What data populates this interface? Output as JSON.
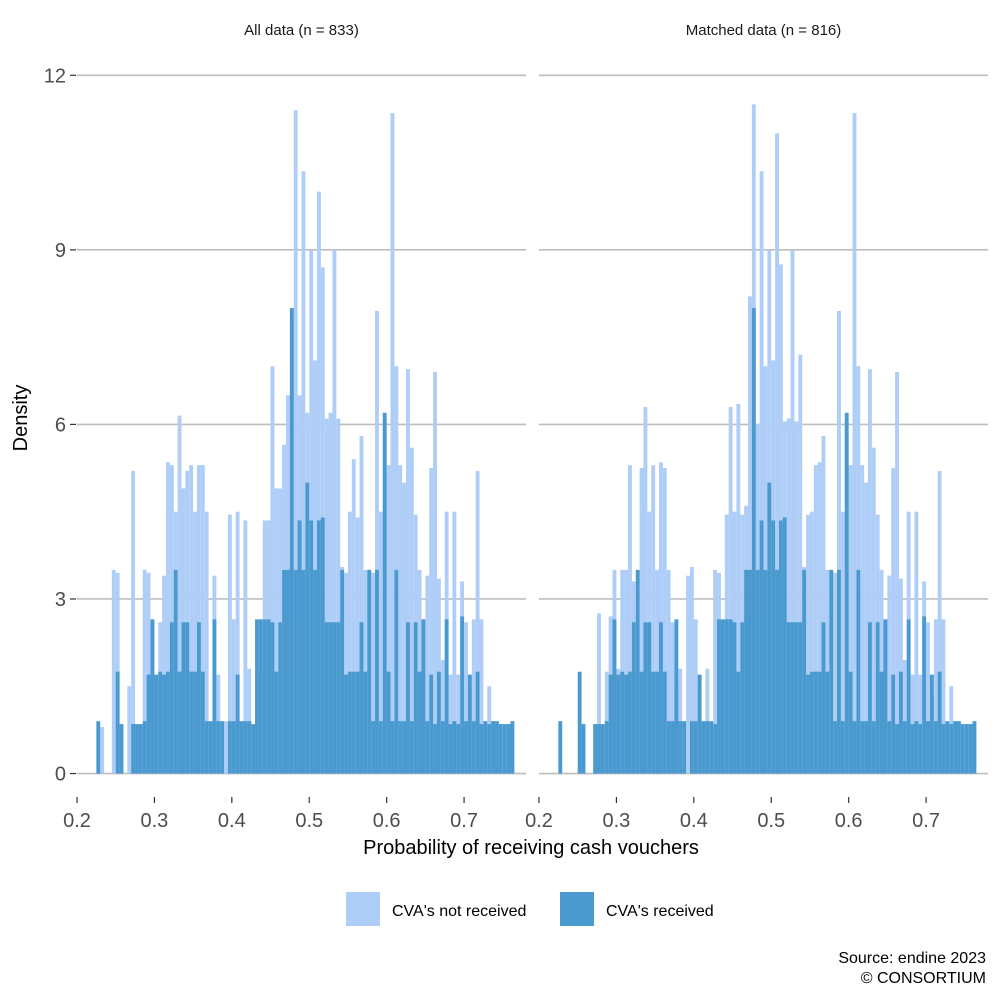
{
  "chart_data": {
    "type": "bar",
    "subtype": "overlaid-histogram",
    "xlabel": "Probability of receiving cash vouchers",
    "ylabel": "Density",
    "xlim": [
      0.2,
      0.78
    ],
    "ylim": [
      -0.3,
      12.4
    ],
    "x_ticks": [
      0.2,
      0.3,
      0.4,
      0.5,
      0.6,
      0.7
    ],
    "y_ticks": [
      0,
      3,
      6,
      9,
      12
    ],
    "bin_width": 0.005,
    "grid": "horizontal-major",
    "legend": {
      "placement": "bottom",
      "entries": [
        {
          "label": "CVA's not received",
          "color": "#aecdf7"
        },
        {
          "label": "CVA's received",
          "color": "#4a9ad0"
        }
      ]
    },
    "caption": [
      "Source: endine 2023",
      "© CONSORTIUM"
    ],
    "facets": [
      {
        "title": "All data (n = 833)",
        "series": [
          {
            "name": "CVA's not received",
            "color": "#aecdf7",
            "x": [
              0.2325,
              0.2475,
              0.2525,
              0.2675,
              0.2725,
              0.2875,
              0.2925,
              0.2975,
              0.3075,
              0.3125,
              0.3175,
              0.3225,
              0.3275,
              0.3325,
              0.3375,
              0.3425,
              0.3475,
              0.3525,
              0.3575,
              0.3625,
              0.3675,
              0.3775,
              0.3825,
              0.3925,
              0.3975,
              0.4025,
              0.4075,
              0.4175,
              0.4225,
              0.4325,
              0.4375,
              0.4425,
              0.4475,
              0.4525,
              0.4575,
              0.4625,
              0.4675,
              0.4725,
              0.4775,
              0.4825,
              0.4875,
              0.4925,
              0.4975,
              0.5025,
              0.5075,
              0.5125,
              0.5175,
              0.5225,
              0.5275,
              0.5325,
              0.5375,
              0.5425,
              0.5475,
              0.5525,
              0.5575,
              0.5625,
              0.5675,
              0.5725,
              0.5775,
              0.5825,
              0.5875,
              0.5925,
              0.5975,
              0.6025,
              0.6075,
              0.6125,
              0.6175,
              0.6225,
              0.6275,
              0.6325,
              0.6375,
              0.6425,
              0.6475,
              0.6525,
              0.6575,
              0.6625,
              0.6675,
              0.6725,
              0.6775,
              0.6825,
              0.6875,
              0.6925,
              0.6975,
              0.7025,
              0.7075,
              0.7125,
              0.7175,
              0.7225,
              0.7275,
              0.7325,
              0.7375,
              0.7425
            ],
            "values": [
              0.8,
              3.5,
              3.45,
              1.5,
              5.2,
              3.5,
              3.45,
              2.6,
              2.6,
              3.4,
              5.35,
              5.3,
              4.5,
              6.15,
              4.9,
              5.2,
              5.3,
              4.5,
              5.3,
              5.3,
              4.5,
              3.4,
              1.7,
              0.9,
              4.45,
              2.65,
              4.5,
              4.35,
              1.8,
              1.7,
              1.5,
              4.35,
              4.35,
              7.0,
              4.9,
              4.9,
              5.65,
              6.5,
              7.8,
              11.4,
              6.5,
              10.35,
              6.2,
              9.0,
              7.1,
              10.0,
              8.7,
              6.1,
              6.2,
              9.0,
              6.1,
              3.55,
              3.45,
              4.5,
              5.4,
              4.4,
              5.8,
              3.5,
              3.5,
              3.45,
              7.95,
              4.5,
              6.05,
              5.3,
              11.35,
              7.0,
              5.3,
              5.0,
              6.95,
              5.6,
              4.45,
              3.5,
              2.6,
              3.4,
              5.25,
              6.9,
              3.35,
              1.95,
              4.5,
              1.7,
              4.5,
              1.7,
              3.3,
              2.6,
              1.4,
              2.65,
              5.2,
              2.65,
              0.8,
              1.5,
              0.9,
              0.8
            ]
          },
          {
            "name": "CVA's received",
            "color": "#4a9ad0",
            "x": [
              0.2275,
              0.2525,
              0.2575,
              0.2725,
              0.2775,
              0.2825,
              0.2875,
              0.2925,
              0.2975,
              0.3025,
              0.3075,
              0.3125,
              0.3175,
              0.3225,
              0.3275,
              0.3325,
              0.3375,
              0.3425,
              0.3475,
              0.3525,
              0.3575,
              0.3625,
              0.3675,
              0.3725,
              0.3775,
              0.3825,
              0.3875,
              0.3925,
              0.3975,
              0.4025,
              0.4075,
              0.4125,
              0.4175,
              0.4225,
              0.4275,
              0.4325,
              0.4375,
              0.4425,
              0.4475,
              0.4525,
              0.4575,
              0.4625,
              0.4675,
              0.4725,
              0.4775,
              0.4825,
              0.4875,
              0.4925,
              0.4975,
              0.5025,
              0.5075,
              0.5125,
              0.5175,
              0.5225,
              0.5275,
              0.5325,
              0.5375,
              0.5425,
              0.5475,
              0.5525,
              0.5575,
              0.5625,
              0.5675,
              0.5725,
              0.5775,
              0.5825,
              0.5875,
              0.5925,
              0.5975,
              0.6025,
              0.6075,
              0.6125,
              0.6175,
              0.6225,
              0.6275,
              0.6325,
              0.6375,
              0.6425,
              0.6475,
              0.6525,
              0.6575,
              0.6625,
              0.6675,
              0.6725,
              0.6775,
              0.6825,
              0.6875,
              0.6925,
              0.6975,
              0.7025,
              0.7075,
              0.7125,
              0.7175,
              0.7225,
              0.7275,
              0.7325,
              0.7375,
              0.7425,
              0.7475,
              0.7525,
              0.7575,
              0.7625
            ],
            "values": [
              0.9,
              1.75,
              0.85,
              0.85,
              0.85,
              0.85,
              0.9,
              1.7,
              2.65,
              1.7,
              1.75,
              1.7,
              1.75,
              2.6,
              3.5,
              1.75,
              2.6,
              2.6,
              1.75,
              1.75,
              2.6,
              1.75,
              0.9,
              0.9,
              2.65,
              0.9,
              0.9,
              0.0,
              0.9,
              0.9,
              1.7,
              0.9,
              0.9,
              0.9,
              0.85,
              2.65,
              2.65,
              2.65,
              2.65,
              2.6,
              1.75,
              2.6,
              3.5,
              3.5,
              8.0,
              3.5,
              4.35,
              3.5,
              5.0,
              4.35,
              3.5,
              4.35,
              4.4,
              2.6,
              2.6,
              2.6,
              2.6,
              3.5,
              1.7,
              1.75,
              1.75,
              1.75,
              2.6,
              1.75,
              3.5,
              0.9,
              3.5,
              0.9,
              6.2,
              1.75,
              0.9,
              3.5,
              0.9,
              0.9,
              2.6,
              0.9,
              2.6,
              1.75,
              2.65,
              0.9,
              1.7,
              0.85,
              1.75,
              0.9,
              2.65,
              0.85,
              0.9,
              0.85,
              2.7,
              0.9,
              1.7,
              0.9,
              1.75,
              0.85,
              0.9,
              0.85,
              0.9,
              0.9,
              0.85,
              0.85,
              0.85,
              0.9
            ]
          }
        ]
      },
      {
        "title": "Matched data (n = 816)",
        "series": [
          {
            "name": "CVA's not received",
            "color": "#aecdf7",
            "x": [
              0.2775,
              0.2875,
              0.2925,
              0.2975,
              0.3025,
              0.3075,
              0.3125,
              0.3175,
              0.3225,
              0.3275,
              0.3325,
              0.3375,
              0.3425,
              0.3475,
              0.3525,
              0.3575,
              0.3625,
              0.3675,
              0.3725,
              0.3775,
              0.3825,
              0.3925,
              0.3975,
              0.4025,
              0.4075,
              0.4175,
              0.4275,
              0.4325,
              0.4375,
              0.4425,
              0.4475,
              0.4525,
              0.4575,
              0.4625,
              0.4675,
              0.4725,
              0.4775,
              0.4825,
              0.4875,
              0.4925,
              0.4975,
              0.5025,
              0.5075,
              0.5125,
              0.5175,
              0.5225,
              0.5275,
              0.5325,
              0.5375,
              0.5425,
              0.5475,
              0.5525,
              0.5575,
              0.5625,
              0.5675,
              0.5725,
              0.5775,
              0.5825,
              0.5875,
              0.5925,
              0.5975,
              0.6025,
              0.6075,
              0.6125,
              0.6175,
              0.6225,
              0.6275,
              0.6325,
              0.6375,
              0.6425,
              0.6475,
              0.6525,
              0.6575,
              0.6625,
              0.6675,
              0.6725,
              0.6775,
              0.6825,
              0.6875,
              0.6925,
              0.6975,
              0.7025,
              0.7075,
              0.7125,
              0.7175,
              0.7225,
              0.7275,
              0.7325
            ],
            "values": [
              2.75,
              1.75,
              2.7,
              3.5,
              1.8,
              3.5,
              3.5,
              5.3,
              3.3,
              2.6,
              5.25,
              6.3,
              4.5,
              5.3,
              3.5,
              5.35,
              5.25,
              3.5,
              2.6,
              1.5,
              1.8,
              3.4,
              3.55,
              2.65,
              1.5,
              1.8,
              3.5,
              3.45,
              0.9,
              4.45,
              6.3,
              4.5,
              6.35,
              4.45,
              4.6,
              8.2,
              11.5,
              6.0,
              10.35,
              7.0,
              9.0,
              7.1,
              11.0,
              8.75,
              6.05,
              6.1,
              9.0,
              6.05,
              7.2,
              3.55,
              4.45,
              4.5,
              5.3,
              5.35,
              5.8,
              3.5,
              3.5,
              3.45,
              7.95,
              4.5,
              6.05,
              5.3,
              11.35,
              7.0,
              5.3,
              5.0,
              6.95,
              5.6,
              4.45,
              3.5,
              2.6,
              3.4,
              5.25,
              6.9,
              3.35,
              1.95,
              4.5,
              1.7,
              4.5,
              1.7,
              3.3,
              2.6,
              1.4,
              2.65,
              5.2,
              2.65,
              0.8,
              1.5
            ]
          },
          {
            "name": "CVA's received",
            "color": "#4a9ad0",
            "x": [
              0.2275,
              0.2525,
              0.2575,
              0.2725,
              0.2775,
              0.2825,
              0.2875,
              0.2925,
              0.2975,
              0.3025,
              0.3075,
              0.3125,
              0.3175,
              0.3225,
              0.3275,
              0.3325,
              0.3375,
              0.3425,
              0.3475,
              0.3525,
              0.3575,
              0.3625,
              0.3675,
              0.3725,
              0.3775,
              0.3825,
              0.3875,
              0.3925,
              0.3975,
              0.4025,
              0.4075,
              0.4125,
              0.4175,
              0.4225,
              0.4275,
              0.4325,
              0.4375,
              0.4425,
              0.4475,
              0.4525,
              0.4575,
              0.4625,
              0.4675,
              0.4725,
              0.4775,
              0.4825,
              0.4875,
              0.4925,
              0.4975,
              0.5025,
              0.5075,
              0.5125,
              0.5175,
              0.5225,
              0.5275,
              0.5325,
              0.5375,
              0.5425,
              0.5475,
              0.5525,
              0.5575,
              0.5625,
              0.5675,
              0.5725,
              0.5775,
              0.5825,
              0.5875,
              0.5925,
              0.5975,
              0.6025,
              0.6075,
              0.6125,
              0.6175,
              0.6225,
              0.6275,
              0.6325,
              0.6375,
              0.6425,
              0.6475,
              0.6525,
              0.6575,
              0.6625,
              0.6675,
              0.6725,
              0.6775,
              0.6825,
              0.6875,
              0.6925,
              0.6975,
              0.7025,
              0.7075,
              0.7125,
              0.7175,
              0.7225,
              0.7275,
              0.7325,
              0.7375,
              0.7425,
              0.7475,
              0.7525,
              0.7575,
              0.7625
            ],
            "values": [
              0.9,
              1.75,
              0.85,
              0.85,
              0.85,
              0.85,
              0.9,
              1.7,
              2.65,
              1.7,
              1.75,
              1.7,
              1.75,
              2.6,
              3.5,
              1.75,
              2.6,
              2.6,
              1.75,
              1.75,
              2.6,
              1.75,
              0.9,
              0.9,
              2.65,
              0.9,
              0.9,
              0.0,
              0.9,
              0.9,
              1.7,
              0.9,
              0.9,
              0.9,
              0.85,
              2.65,
              2.65,
              2.65,
              2.65,
              2.6,
              1.75,
              2.6,
              3.5,
              3.5,
              8.0,
              3.5,
              4.35,
              3.5,
              5.0,
              4.35,
              3.5,
              4.35,
              4.4,
              2.6,
              2.6,
              2.6,
              2.6,
              3.5,
              1.7,
              1.75,
              1.75,
              1.75,
              2.6,
              1.75,
              3.5,
              0.9,
              3.5,
              0.9,
              6.2,
              1.75,
              0.9,
              3.5,
              0.9,
              0.9,
              2.6,
              0.9,
              2.6,
              1.75,
              2.65,
              0.9,
              1.7,
              0.85,
              1.75,
              0.9,
              2.65,
              0.85,
              0.9,
              0.85,
              2.7,
              0.9,
              1.7,
              0.9,
              1.75,
              0.85,
              0.9,
              0.85,
              0.9,
              0.9,
              0.85,
              0.85,
              0.85,
              0.9
            ]
          }
        ]
      }
    ]
  }
}
